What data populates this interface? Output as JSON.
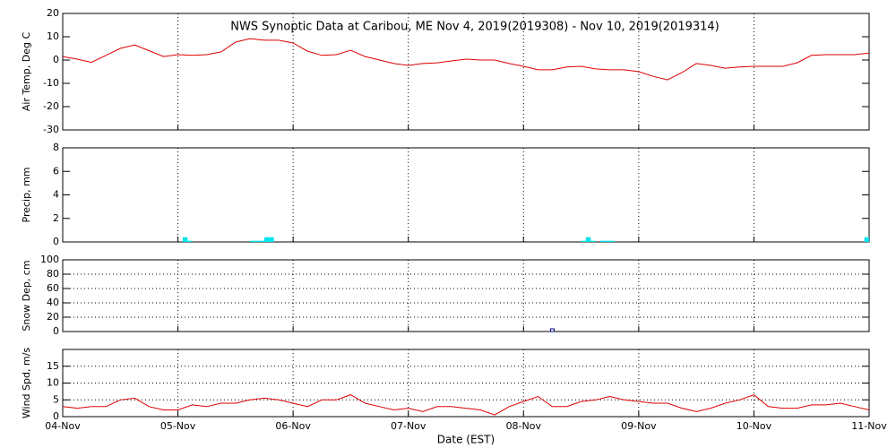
{
  "chart_data": [
    {
      "type": "line",
      "title": "NWS Synoptic Data at Caribou, ME   Nov  4, 2019(2019308) - Nov 10, 2019(2019314)",
      "y_label": "Air Temp, Deg C",
      "color": "#dd0000",
      "x": [
        0,
        3,
        6,
        9,
        12,
        15,
        18,
        21,
        24,
        27,
        30,
        33,
        36,
        39,
        42,
        45,
        48,
        51,
        54,
        57,
        60,
        63,
        66,
        69,
        72,
        75,
        78,
        81,
        84,
        87,
        90,
        93,
        96,
        99,
        102,
        105,
        108,
        111,
        114,
        117,
        120,
        123,
        126,
        129,
        132,
        135,
        138,
        141,
        144,
        147,
        150,
        153,
        156,
        159,
        162,
        165,
        168
      ],
      "values": [
        1.5,
        0.4,
        -1,
        2,
        5,
        6.5,
        4,
        1.5,
        2.3,
        2,
        2.3,
        3.5,
        7.7,
        9.2,
        8.5,
        8.5,
        7.3,
        3.8,
        2,
        2.3,
        4.2,
        1.5,
        0,
        -1.5,
        -2.3,
        -1.5,
        -1.2,
        -0.4,
        0.4,
        0,
        0,
        -1.5,
        -2.7,
        -4.2,
        -4.2,
        -3,
        -2.7,
        -3.8,
        -4.2,
        -4.2,
        -5,
        -7,
        -8.5,
        -5.4,
        -1.5,
        -2.3,
        -3.5,
        -3,
        -2.7,
        -2.7,
        -2.7,
        -1.2,
        2,
        2.3,
        2.3,
        2.3,
        3
      ],
      "xlim": [
        0,
        168
      ],
      "xticks": [
        0,
        24,
        48,
        72,
        96,
        120,
        144,
        168
      ],
      "ylim": [
        -30,
        20
      ],
      "yticks": [
        -30,
        -20,
        -10,
        0,
        10,
        20
      ],
      "xgrid": true,
      "ygrid": false
    },
    {
      "type": "bar",
      "y_label": "Precip, mm",
      "color": "#00e5ee",
      "x": [
        25,
        26,
        39,
        40,
        41,
        42,
        43,
        108,
        109,
        110,
        112,
        113,
        114,
        167
      ],
      "values": [
        0.4,
        0.1,
        0.1,
        0.1,
        0.1,
        0.4,
        0.4,
        0.1,
        0.4,
        0.1,
        0.1,
        0.1,
        0.1,
        0.4
      ],
      "xlim": [
        0,
        168
      ],
      "xticks": [
        0,
        24,
        48,
        72,
        96,
        120,
        144,
        168
      ],
      "ylim": [
        0,
        8
      ],
      "yticks": [
        0,
        2,
        4,
        6,
        8
      ],
      "xgrid": true,
      "ygrid": false
    },
    {
      "type": "scatter",
      "y_label": "Snow Dep, cm",
      "color": "#000080",
      "x": [
        102
      ],
      "values": [
        0
      ],
      "xlim": [
        0,
        168
      ],
      "xticks": [
        0,
        24,
        48,
        72,
        96,
        120,
        144,
        168
      ],
      "ylim": [
        0,
        100
      ],
      "yticks": [
        0,
        20,
        40,
        60,
        80,
        100
      ],
      "xgrid": true,
      "ygrid": true
    },
    {
      "type": "line",
      "y_label": "Wind Spd, m/s",
      "x_label": "Date (EST)",
      "color": "#dd0000",
      "x": [
        0,
        3,
        6,
        9,
        12,
        15,
        18,
        21,
        24,
        27,
        30,
        33,
        36,
        39,
        42,
        45,
        48,
        51,
        54,
        57,
        60,
        63,
        66,
        69,
        72,
        75,
        78,
        81,
        84,
        87,
        90,
        93,
        96,
        99,
        102,
        105,
        108,
        111,
        114,
        117,
        120,
        123,
        126,
        129,
        132,
        135,
        138,
        141,
        144,
        147,
        150,
        153,
        156,
        159,
        162,
        165,
        168
      ],
      "values": [
        3,
        2.5,
        3,
        3,
        5,
        5.5,
        3,
        2,
        2,
        3.5,
        3,
        4,
        4,
        5,
        5.5,
        5,
        4,
        3,
        5,
        5,
        6.5,
        4,
        3,
        2,
        2.5,
        1.5,
        3,
        3,
        2.5,
        2,
        0.5,
        3,
        4.5,
        6,
        3,
        3,
        4.5,
        5,
        6,
        5,
        4.5,
        4,
        4,
        2.5,
        1.5,
        2.5,
        4,
        5,
        6.5,
        3,
        2.5,
        2.5,
        3.5,
        3.5,
        4,
        3,
        2
      ],
      "xlim": [
        0,
        168
      ],
      "xticks": [
        {
          "value": 0,
          "label": "04-Nov"
        },
        {
          "value": 24,
          "label": "05-Nov"
        },
        {
          "value": 48,
          "label": "06-Nov"
        },
        {
          "value": 72,
          "label": "07-Nov"
        },
        {
          "value": 96,
          "label": "08-Nov"
        },
        {
          "value": 120,
          "label": "09-Nov"
        },
        {
          "value": 144,
          "label": "10-Nov"
        },
        {
          "value": 168,
          "label": "11-Nov"
        }
      ],
      "ylim": [
        0,
        20
      ],
      "yticks": [
        0,
        5,
        10,
        15
      ],
      "xgrid": true,
      "ygrid": true
    }
  ]
}
